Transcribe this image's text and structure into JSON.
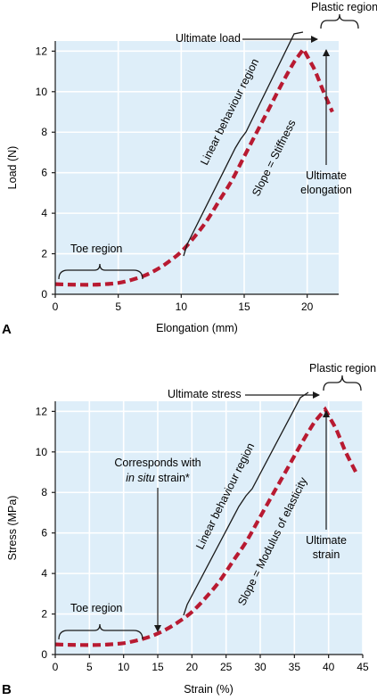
{
  "chart_data": [
    {
      "type": "line",
      "panel_label": "A",
      "xlabel": "Elongation (mm)",
      "ylabel": "Load (N)",
      "xlim": [
        0,
        22.5
      ],
      "ylim": [
        0,
        12.5
      ],
      "xticks": [
        "0",
        "5",
        "10",
        "15",
        "20"
      ],
      "yticks": [
        "0",
        "2",
        "4",
        "6",
        "8",
        "10",
        "12"
      ],
      "grid": true,
      "series": [
        {
          "x": [
            0,
            1,
            2,
            3,
            4,
            5,
            6,
            7,
            8,
            9,
            10,
            11,
            12,
            13,
            14,
            15,
            16,
            17,
            18,
            19,
            19.7,
            20.5,
            21.3,
            22
          ],
          "y": [
            0.5,
            0.48,
            0.47,
            0.47,
            0.5,
            0.56,
            0.7,
            0.9,
            1.2,
            1.6,
            2.1,
            2.8,
            3.6,
            4.6,
            5.6,
            6.8,
            8.0,
            9.2,
            10.4,
            11.5,
            12.1,
            11.2,
            10.0,
            9.0
          ]
        }
      ],
      "annotations": {
        "toe_region": "Toe region",
        "linear_region": "Linear behaviour region",
        "slope": "Slope = Stiffness",
        "ultimate_top": "Ultimate load",
        "plastic": "Plastic region",
        "ultimate_bottom_1": "Ultimate",
        "ultimate_bottom_2": "elongation"
      }
    },
    {
      "type": "line",
      "panel_label": "B",
      "xlabel": "Strain (%)",
      "ylabel": "Stress (MPa)",
      "xlim": [
        0,
        45
      ],
      "ylim": [
        0,
        12.5
      ],
      "xticks": [
        "0",
        "5",
        "10",
        "15",
        "20",
        "25",
        "30",
        "35",
        "40",
        "45"
      ],
      "yticks": [
        "0",
        "2",
        "4",
        "6",
        "8",
        "10",
        "12"
      ],
      "grid": true,
      "series": [
        {
          "x": [
            0,
            2,
            4,
            6,
            8,
            10,
            12,
            14,
            16,
            18,
            20,
            22,
            24,
            26,
            28,
            30,
            32,
            34,
            36,
            38,
            39.5,
            41,
            42.5,
            44
          ],
          "y": [
            0.5,
            0.48,
            0.47,
            0.47,
            0.5,
            0.56,
            0.7,
            0.9,
            1.2,
            1.6,
            2.1,
            2.8,
            3.6,
            4.6,
            5.6,
            6.8,
            8.0,
            9.2,
            10.4,
            11.5,
            12.1,
            11.2,
            10.0,
            9.0
          ]
        }
      ],
      "annotations": {
        "toe_region": "Toe region",
        "linear_region": "Linear behaviour region",
        "slope": "Slope = Modulus of elasticity",
        "ultimate_top": "Ultimate stress",
        "plastic": "Plastic region",
        "ultimate_bottom_1": "Ultimate",
        "ultimate_bottom_2": "strain",
        "insitu_1": "Corresponds with",
        "insitu_2a": "in situ",
        "insitu_2b": " strain*"
      }
    }
  ]
}
